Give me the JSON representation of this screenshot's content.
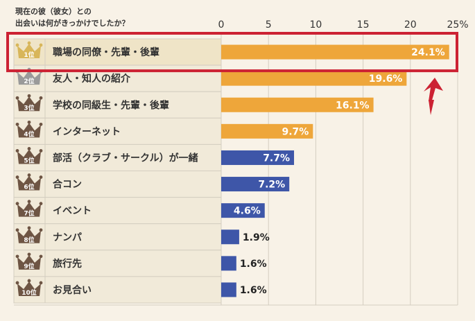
{
  "chart_data": {
    "type": "bar",
    "orientation": "horizontal",
    "title_lines": [
      "現在の彼（彼女）との",
      "出会いは何がきっかけでしたか？"
    ],
    "ticks": [
      0,
      5,
      10,
      15,
      20,
      25
    ],
    "tick_suffix_last": "%",
    "xlim": [
      0,
      25
    ],
    "grid": true,
    "ranks": [
      "1位",
      "2位",
      "3位",
      "4位",
      "5位",
      "6位",
      "7位",
      "8位",
      "9位",
      "10位"
    ],
    "categories": [
      "職場の同僚・先輩・後輩",
      "友人・知人の紹介",
      "学校の同級生・先輩・後輩",
      "インターネット",
      "部活（クラブ・サークル）が一緒",
      "合コン",
      "イベント",
      "ナンパ",
      "旅行先",
      "お見合い"
    ],
    "values": [
      24.1,
      19.6,
      16.1,
      9.7,
      7.7,
      7.2,
      4.6,
      1.9,
      1.6,
      1.6
    ],
    "value_labels": [
      "24.1%",
      "19.6%",
      "16.1%",
      "9.7%",
      "7.7%",
      "7.2%",
      "4.6%",
      "1.9%",
      "1.6%",
      "1.6%"
    ],
    "highlight_index": 0,
    "colors": {
      "orange": "#eea63a",
      "blue": "#3e56a8",
      "gold_crown": "#d8b65a",
      "silver_crown": "#9a9a9a",
      "bronze_crown": "#6e5544",
      "highlight_box": "#cc2233",
      "arrow": "#cc2233",
      "grid": "#d4cdc0",
      "row_fill": "#f1ead9",
      "row_fill_top": "#efe4c7"
    }
  }
}
